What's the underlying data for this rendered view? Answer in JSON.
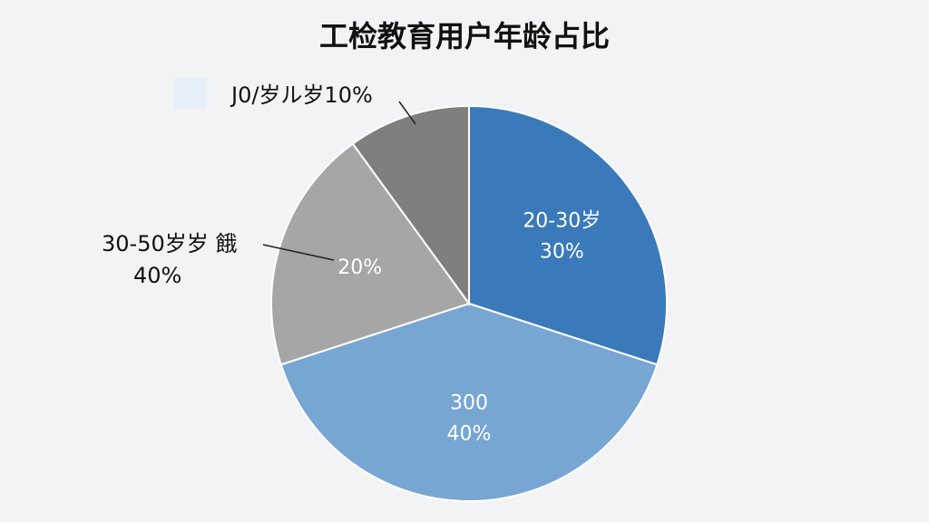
{
  "chart_data": {
    "type": "pie",
    "title": "工检教育用户年龄占比",
    "categories": [
      "20-30岁",
      "300",
      null,
      null
    ],
    "values": [
      30,
      40,
      20,
      10
    ],
    "value_labels": [
      "30%",
      "40%",
      "20%",
      "10%"
    ],
    "colors": [
      "#3a7aba",
      "#77a6d3",
      "#a6a6a6",
      "#7f7f7f"
    ],
    "annotations": [
      "30-50岁岁 餓",
      "40%",
      "J0/岁ル岁10%"
    ]
  }
}
